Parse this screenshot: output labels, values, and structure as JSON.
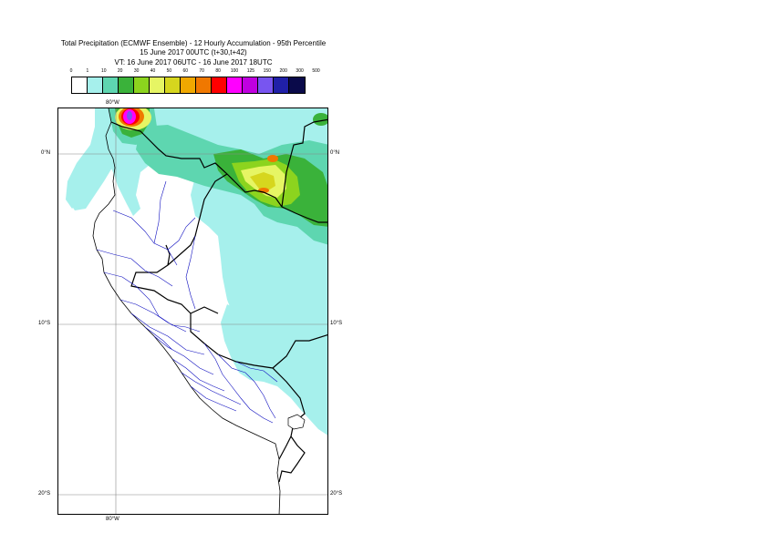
{
  "header": {
    "line1": "Total Precipitation (ECMWF Ensemble) - 12 Hourly Accumulation - 95th Percentile",
    "line2": "15 June 2017 00UTC (t+30,t+42)",
    "line3": "VT: 16 June 2017 06UTC - 16 June 2017 18UTC"
  },
  "legend": {
    "ticks": [
      "0",
      "1",
      "10",
      "20",
      "30",
      "40",
      "50",
      "60",
      "70",
      "80",
      "100",
      "125",
      "150",
      "200",
      "300",
      "500"
    ],
    "colors": [
      "#ffffff",
      "#a6f0ec",
      "#5ed6b0",
      "#3ab23a",
      "#8cd41e",
      "#e6f564",
      "#d6d61e",
      "#f0a800",
      "#f07800",
      "#ff0000",
      "#ff00ff",
      "#c000e0",
      "#7855f0",
      "#2020a8",
      "#0a0a4a"
    ]
  },
  "map": {
    "lon_top": "80°W",
    "lon_bottom": "80°W",
    "lat_0_left": "0°N",
    "lat_0_right": "0°N",
    "lat_10_left": "10°S",
    "lat_10_right": "10°S",
    "lat_20_left": "20°S",
    "lat_20_right": "20°S"
  }
}
